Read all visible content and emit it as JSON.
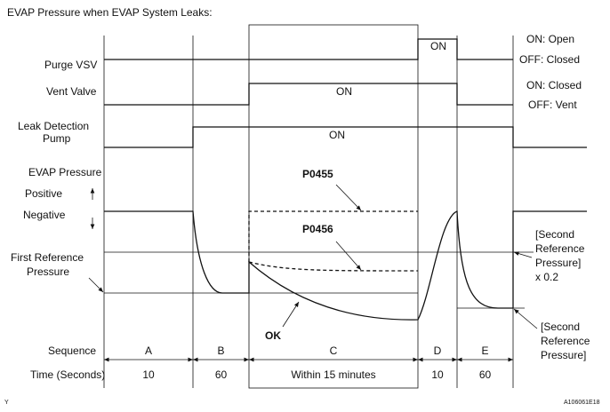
{
  "header": {
    "title": "EVAP Pressure when EVAP System Leaks:"
  },
  "rows": {
    "purge_vsv": {
      "label": "Purge VSV",
      "on": "ON",
      "on_state": "ON: Open",
      "off_state": "OFF: Closed"
    },
    "vent_valve": {
      "label": "Vent Valve",
      "on": "ON",
      "on_state": "ON: Closed",
      "off_state": "OFF: Vent"
    },
    "pump": {
      "label": [
        "Leak Detection",
        "Pump"
      ],
      "on": "ON"
    },
    "pressure": {
      "label": "EVAP Pressure",
      "positive": "Positive",
      "negative": "Negative",
      "first_reference": [
        "First Reference",
        "Pressure"
      ],
      "second_reference_x02": [
        "[Second",
        "Reference",
        "Pressure]",
        "x 0.2"
      ],
      "second_reference": [
        "[Second",
        "Reference",
        "Pressure]"
      ],
      "p0455": "P0455",
      "p0456": "P0456",
      "ok": "OK"
    }
  },
  "sequence": {
    "label": "Sequence",
    "steps": [
      "A",
      "B",
      "C",
      "D",
      "E"
    ]
  },
  "time": {
    "label": "Time (Seconds)",
    "values": [
      "10",
      "60",
      "Within 15 minutes",
      "10",
      "60"
    ]
  },
  "footer": {
    "left": "Y",
    "right": "A106061E18"
  }
}
